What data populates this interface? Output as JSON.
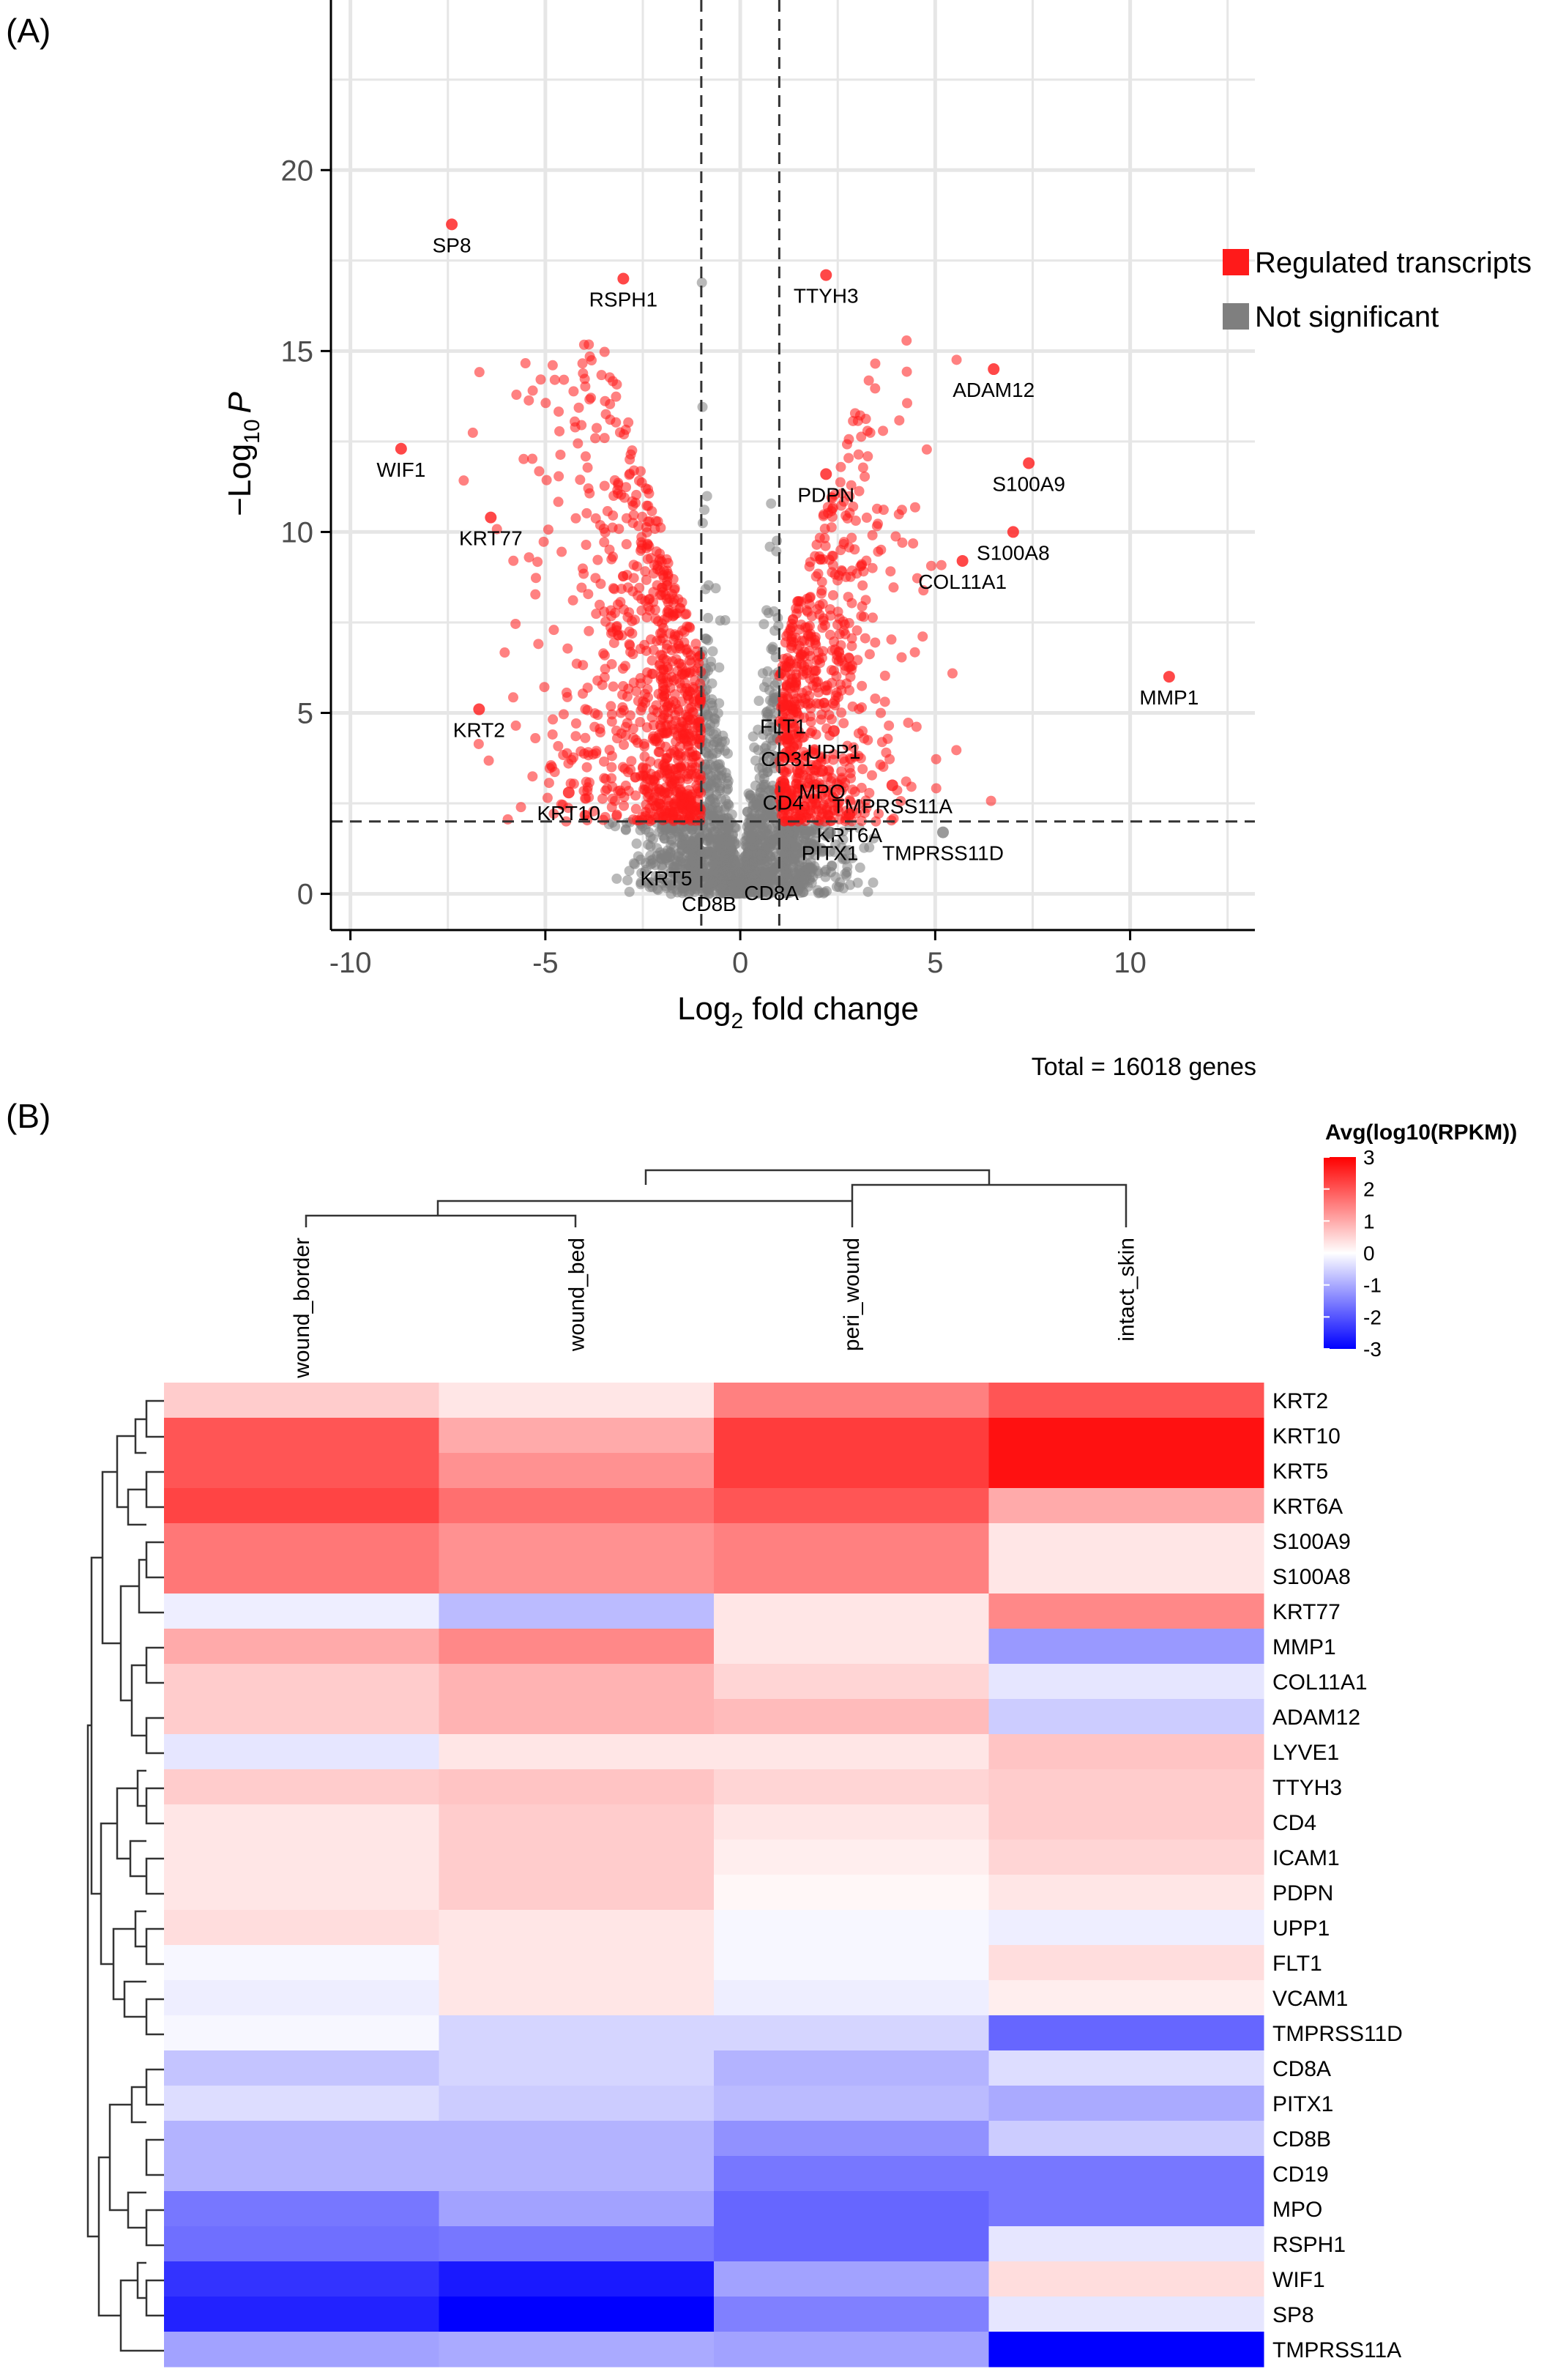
{
  "chart_data": [
    {
      "type": "scatter",
      "panel_label": "(A)",
      "xlabel": "Log",
      "xlabel_sub": "2",
      "xlabel_tail": " fold change",
      "ylabel_pre": "−Log",
      "ylabel_sub": "10",
      "ylabel_tail": "P",
      "xlim": [
        -10.5,
        13.2
      ],
      "ylim": [
        -1.0,
        24.7
      ],
      "xticks": [
        -10,
        -5,
        0,
        5,
        10
      ],
      "yticks": [
        0,
        5,
        10,
        15,
        20
      ],
      "grid": true,
      "thresholds": {
        "x": [
          -1,
          1
        ],
        "y": 2
      },
      "caption": "Total = 16018 genes",
      "legend": {
        "placement": "right",
        "entries": [
          {
            "label": "Regulated transcripts",
            "color": "#ff1a1a"
          },
          {
            "label": "Not significant",
            "color": "#7f7f7f"
          }
        ]
      },
      "labeled_points": [
        {
          "gene": "SP8",
          "x": -7.4,
          "y": 18.5
        },
        {
          "gene": "RSPH1",
          "x": -3.0,
          "y": 17.0
        },
        {
          "gene": "TTYH3",
          "x": 2.2,
          "y": 17.1
        },
        {
          "gene": "ADAM12",
          "x": 6.5,
          "y": 14.5
        },
        {
          "gene": "WIF1",
          "x": -8.7,
          "y": 12.3
        },
        {
          "gene": "S100A9",
          "x": 7.4,
          "y": 11.9
        },
        {
          "gene": "PDPN",
          "x": 2.2,
          "y": 11.6
        },
        {
          "gene": "KRT77",
          "x": -6.4,
          "y": 10.4
        },
        {
          "gene": "S100A8",
          "x": 7.0,
          "y": 10.0
        },
        {
          "gene": "COL11A1",
          "x": 5.7,
          "y": 9.2
        },
        {
          "gene": "MMP1",
          "x": 11.0,
          "y": 6.0
        },
        {
          "gene": "FLT1",
          "x": 1.1,
          "y": 5.2
        },
        {
          "gene": "UPP1",
          "x": 2.4,
          "y": 4.5
        },
        {
          "gene": "CD31",
          "x": 1.2,
          "y": 4.3
        },
        {
          "gene": "KRT2",
          "x": -6.7,
          "y": 5.1
        },
        {
          "gene": "MPO",
          "x": 2.1,
          "y": 3.4
        },
        {
          "gene": "CD4",
          "x": 1.1,
          "y": 3.1
        },
        {
          "gene": "TMPRSS11A",
          "x": 3.9,
          "y": 3.0
        },
        {
          "gene": "KRT10",
          "x": -4.4,
          "y": 2.8
        },
        {
          "gene": "KRT6A",
          "x": 2.8,
          "y": 2.2
        },
        {
          "gene": "PITX1",
          "x": 2.3,
          "y": 1.7
        },
        {
          "gene": "TMPRSS11D",
          "x": 5.2,
          "y": 1.7
        },
        {
          "gene": "KRT5",
          "x": -1.9,
          "y": 1.0
        },
        {
          "gene": "CD8A",
          "x": 0.8,
          "y": 0.6
        },
        {
          "gene": "CD8B",
          "x": -0.8,
          "y": 0.3
        }
      ]
    },
    {
      "type": "heatmap",
      "panel_label": "(B)",
      "legend_title": "Avg(log10(RPKM))",
      "scale_ticks": [
        3,
        2,
        1,
        0,
        -1,
        -2,
        -3
      ],
      "range": [
        -3,
        3
      ],
      "columns": [
        "wound_border",
        "wound_bed",
        "peri_wound",
        "intact_skin"
      ],
      "rows": [
        "KRT2",
        "KRT10",
        "KRT5",
        "KRT6A",
        "S100A9",
        "S100A8",
        "KRT77",
        "MMP1",
        "COL11A1",
        "ADAM12",
        "LYVE1",
        "TTYH3",
        "CD4",
        "ICAM1",
        "PDPN",
        "UPP1",
        "FLT1",
        "VCAM1",
        "TMPRSS11D",
        "CD8A",
        "PITX1",
        "CD8B",
        "CD19",
        "MPO",
        "RSPH1",
        "WIF1",
        "SP8",
        "TMPRSS11A"
      ],
      "values": [
        [
          0.6,
          0.3,
          1.5,
          2.0
        ],
        [
          2.0,
          1.0,
          2.3,
          2.8
        ],
        [
          2.0,
          1.3,
          2.3,
          2.8
        ],
        [
          2.2,
          1.7,
          2.0,
          1.0
        ],
        [
          1.6,
          1.3,
          1.5,
          0.3
        ],
        [
          1.6,
          1.3,
          1.5,
          0.3
        ],
        [
          -0.2,
          -0.8,
          0.3,
          1.4
        ],
        [
          1.0,
          1.4,
          0.3,
          -1.2
        ],
        [
          0.6,
          0.9,
          0.5,
          -0.3
        ],
        [
          0.6,
          0.9,
          0.8,
          -0.6
        ],
        [
          -0.3,
          0.3,
          0.3,
          0.7
        ],
        [
          0.6,
          0.7,
          0.5,
          0.6
        ],
        [
          0.3,
          0.6,
          0.3,
          0.6
        ],
        [
          0.3,
          0.6,
          0.2,
          0.5
        ],
        [
          0.3,
          0.6,
          0.1,
          0.3
        ],
        [
          0.4,
          0.3,
          -0.1,
          -0.2
        ],
        [
          -0.1,
          0.3,
          -0.1,
          0.4
        ],
        [
          -0.2,
          0.3,
          -0.2,
          0.2
        ],
        [
          -0.1,
          -0.5,
          -0.5,
          -1.8
        ],
        [
          -0.7,
          -0.5,
          -0.9,
          -0.4
        ],
        [
          -0.4,
          -0.6,
          -0.8,
          -1.0
        ],
        [
          -0.9,
          -0.9,
          -1.3,
          -0.6
        ],
        [
          -0.9,
          -0.9,
          -1.6,
          -1.6
        ],
        [
          -1.6,
          -1.1,
          -1.8,
          -1.6
        ],
        [
          -1.7,
          -1.6,
          -1.8,
          -0.3
        ],
        [
          -2.4,
          -2.7,
          -1.1,
          0.4
        ],
        [
          -2.6,
          -3.0,
          -1.5,
          -0.3
        ],
        [
          -1.1,
          -1.0,
          -1.1,
          -3.0
        ]
      ]
    }
  ]
}
